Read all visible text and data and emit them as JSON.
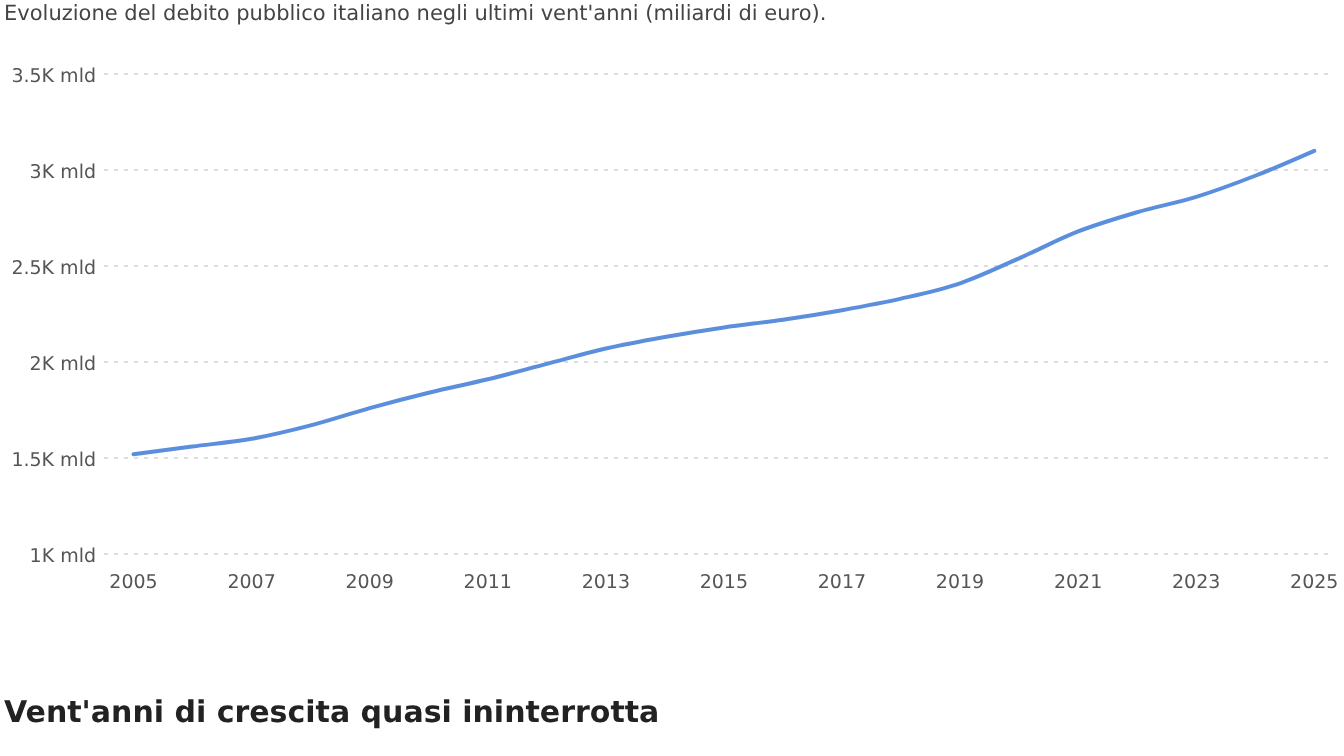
{
  "chart_data": {
    "type": "line",
    "subtitle": "Evoluzione del debito pubblico italiano negli ultimi vent'anni (miliardi di euro).",
    "annotations": [
      "Vent'anni di crescita quasi ininterrotta"
    ],
    "x": [
      2005,
      2006,
      2007,
      2008,
      2009,
      2010,
      2011,
      2012,
      2013,
      2014,
      2015,
      2016,
      2017,
      2018,
      2019,
      2020,
      2021,
      2022,
      2023,
      2024,
      2025
    ],
    "series": [
      {
        "color": "#5b8fdd",
        "values": [
          1520,
          1560,
          1600,
          1670,
          1760,
          1840,
          1910,
          1990,
          2070,
          2130,
          2180,
          2220,
          2270,
          2330,
          2410,
          2540,
          2680,
          2780,
          2860,
          2970,
          3100
        ]
      }
    ],
    "xlim": [
      2004.5,
      2025.3
    ],
    "xticks": [
      2005,
      2007,
      2009,
      2011,
      2013,
      2015,
      2017,
      2019,
      2021,
      2023,
      2025
    ],
    "ylim": [
      1000,
      3500
    ],
    "yticks": [
      {
        "value": 1000,
        "label": "1K mld"
      },
      {
        "value": 1500,
        "label": "1.5K mld"
      },
      {
        "value": 2000,
        "label": "2K mld"
      },
      {
        "value": 2500,
        "label": "2.5K mld"
      },
      {
        "value": 3000,
        "label": "3K mld"
      },
      {
        "value": 3500,
        "label": "3.5K mld"
      }
    ],
    "grid": "y",
    "marker": "none",
    "line_style": "solid"
  }
}
